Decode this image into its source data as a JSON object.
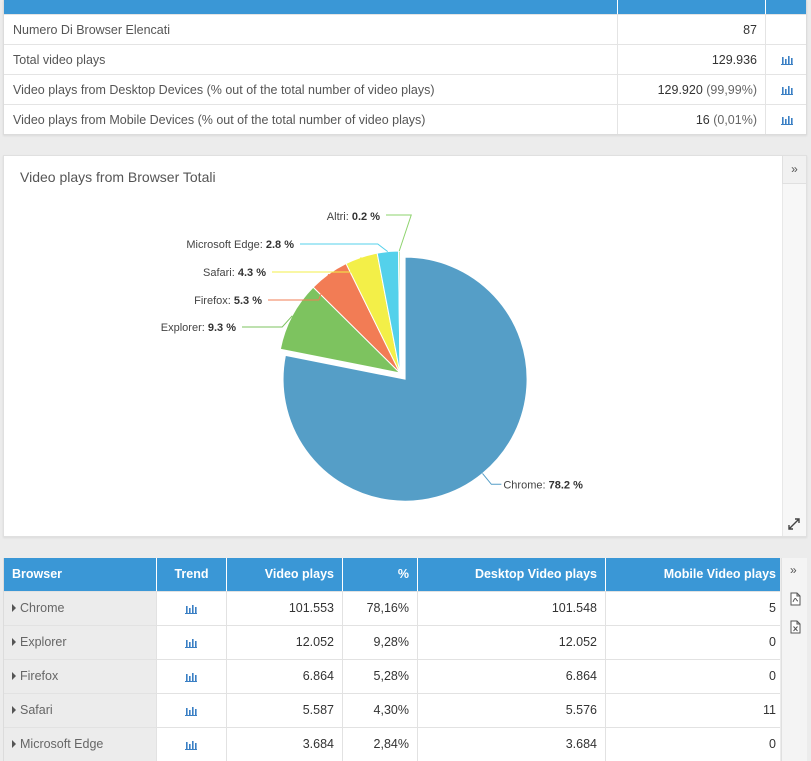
{
  "summary": {
    "rows": [
      {
        "label": "Numero Di Browser Elencati",
        "value": "87",
        "pct": "",
        "chart_icon": false
      },
      {
        "label": "Total video plays",
        "value": "129.936",
        "pct": "",
        "chart_icon": true
      },
      {
        "label": "Video plays from Desktop Devices (% out of the total number of video plays)",
        "value": "129.920",
        "pct": "(99,99%)",
        "chart_icon": true
      },
      {
        "label": "Video plays from Mobile Devices (% out of the total number of video plays)",
        "value": "16",
        "pct": "(0,01%)",
        "chart_icon": true
      }
    ]
  },
  "chart": {
    "expand_label": "»"
  },
  "chart_data": {
    "type": "pie",
    "title": "Video plays from Browser Totali",
    "sliced": "Chrome",
    "slices": [
      {
        "name": "Chrome",
        "value": 78.2,
        "label": "78.2 %",
        "color": "#559ec7"
      },
      {
        "name": "Explorer",
        "value": 9.3,
        "label": "9.3 %",
        "color": "#7dc35f"
      },
      {
        "name": "Firefox",
        "value": 5.3,
        "label": "5.3 %",
        "color": "#f27c55"
      },
      {
        "name": "Safari",
        "value": 4.3,
        "label": "4.3 %",
        "color": "#f3ef48"
      },
      {
        "name": "Microsoft Edge",
        "value": 2.8,
        "label": "2.8 %",
        "color": "#54d1eb"
      },
      {
        "name": "Altri",
        "value": 0.2,
        "label": "0.2 %",
        "color": "#8ed36d"
      }
    ]
  },
  "browser_table": {
    "headers": {
      "browser": "Browser",
      "trend": "Trend",
      "video_plays": "Video plays",
      "pct": "%",
      "desktop": "Desktop Video plays",
      "mobile": "Mobile Video plays"
    },
    "rows": [
      {
        "browser": "Chrome",
        "video_plays": "101.553",
        "pct": "78,16%",
        "desktop": "101.548",
        "mobile": "5"
      },
      {
        "browser": "Explorer",
        "video_plays": "12.052",
        "pct": "9,28%",
        "desktop": "12.052",
        "mobile": "0"
      },
      {
        "browser": "Firefox",
        "video_plays": "6.864",
        "pct": "5,28%",
        "desktop": "6.864",
        "mobile": "0"
      },
      {
        "browser": "Safari",
        "video_plays": "5.587",
        "pct": "4,30%",
        "desktop": "5.576",
        "mobile": "11"
      },
      {
        "browser": "Microsoft Edge",
        "video_plays": "3.684",
        "pct": "2,84%",
        "desktop": "3.684",
        "mobile": "0"
      }
    ],
    "side_toggle_label": "»"
  },
  "colors": {
    "accent": "#3a97d6",
    "icon": "#3a7fc4"
  }
}
